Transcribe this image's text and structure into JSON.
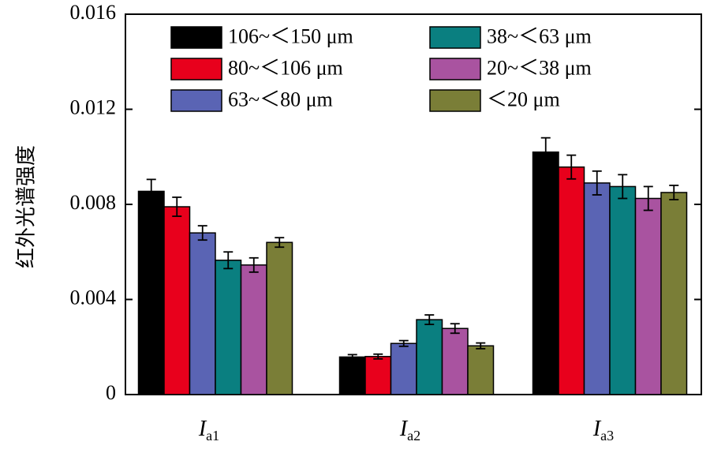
{
  "chart_data": {
    "type": "bar",
    "ylabel": "红外光谱强度",
    "ylim": [
      0,
      0.016
    ],
    "yticks": [
      "0",
      "0.004",
      "0.008",
      "0.012",
      "0.016"
    ],
    "ytick_values": [
      0,
      0.004,
      0.008,
      0.012,
      0.016
    ],
    "grid": false,
    "legend_position": "top-left",
    "categories": [
      {
        "main": "I",
        "sub": "a1"
      },
      {
        "main": "I",
        "sub": "a2"
      },
      {
        "main": "I",
        "sub": "a3"
      }
    ],
    "series": [
      {
        "name": "106~＜150 μm",
        "color": "#000000",
        "values": [
          0.00855,
          0.00158,
          0.0102
        ],
        "errors": [
          0.0005,
          0.0001,
          0.0006
        ]
      },
      {
        "name": "80~＜106 μm",
        "color": "#e8001c",
        "values": [
          0.0079,
          0.0016,
          0.00957
        ],
        "errors": [
          0.0004,
          0.0001,
          0.0005
        ]
      },
      {
        "name": "63~＜80 μm",
        "color": "#5a64b4",
        "values": [
          0.0068,
          0.00215,
          0.0089
        ],
        "errors": [
          0.0003,
          0.00012,
          0.0005
        ]
      },
      {
        "name": "38~＜63 μm",
        "color": "#0a7f80",
        "values": [
          0.00565,
          0.00315,
          0.00875
        ],
        "errors": [
          0.00035,
          0.0002,
          0.0005
        ]
      },
      {
        "name": "20~＜38 μm",
        "color": "#a953a0",
        "values": [
          0.00545,
          0.00278,
          0.00825
        ],
        "errors": [
          0.0003,
          0.0002,
          0.0005
        ]
      },
      {
        "name": "＜20 μm",
        "color": "#7a7e37",
        "values": [
          0.0064,
          0.00205,
          0.0085
        ],
        "errors": [
          0.0002,
          0.00012,
          0.0003
        ]
      }
    ]
  }
}
